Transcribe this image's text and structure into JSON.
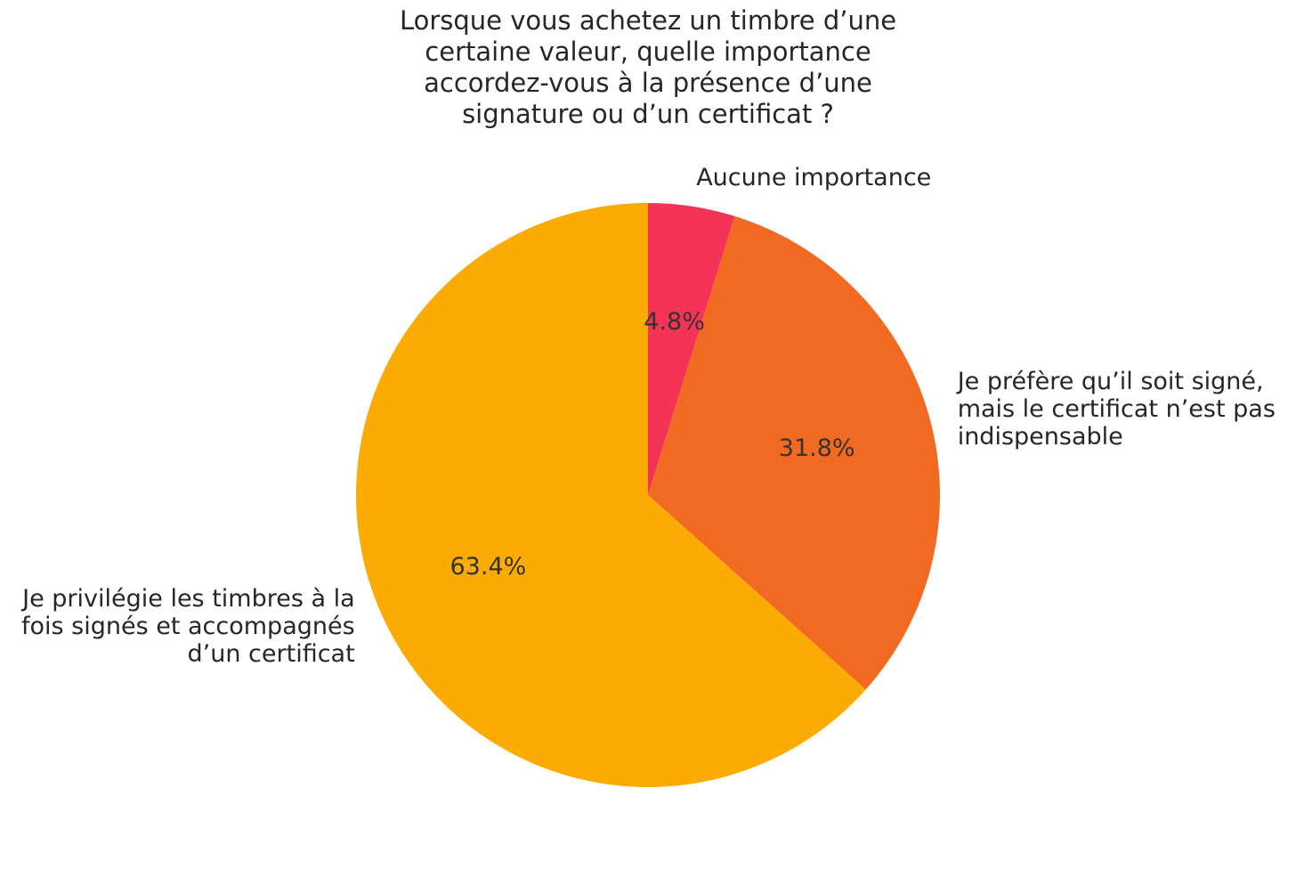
{
  "chart_data": {
    "type": "pie",
    "title_lines": [
      "Lorsque vous achetez un timbre d’une",
      "certaine valeur, quelle importance",
      "accordez-vous à la présence d’une",
      "signature ou d’un certificat ?"
    ],
    "slices": [
      {
        "label_lines": [
          "Aucune importance"
        ],
        "value": 4.8,
        "pct_label": "4.8%",
        "color": "#F43356"
      },
      {
        "label_lines": [
          "Je préfère qu’il soit signé,",
          "mais le certificat n’est pas",
          "indispensable"
        ],
        "value": 31.8,
        "pct_label": "31.8%",
        "color": "#F26A22"
      },
      {
        "label_lines": [
          "Je privilégie les timbres à la",
          "fois signés et accompagnés",
          "d’un certificat"
        ],
        "value": 63.4,
        "pct_label": "63.4%",
        "color": "#FCAB02"
      }
    ],
    "start_angle": "top (12 o'clock)",
    "direction": "clockwise",
    "legend": "none"
  }
}
